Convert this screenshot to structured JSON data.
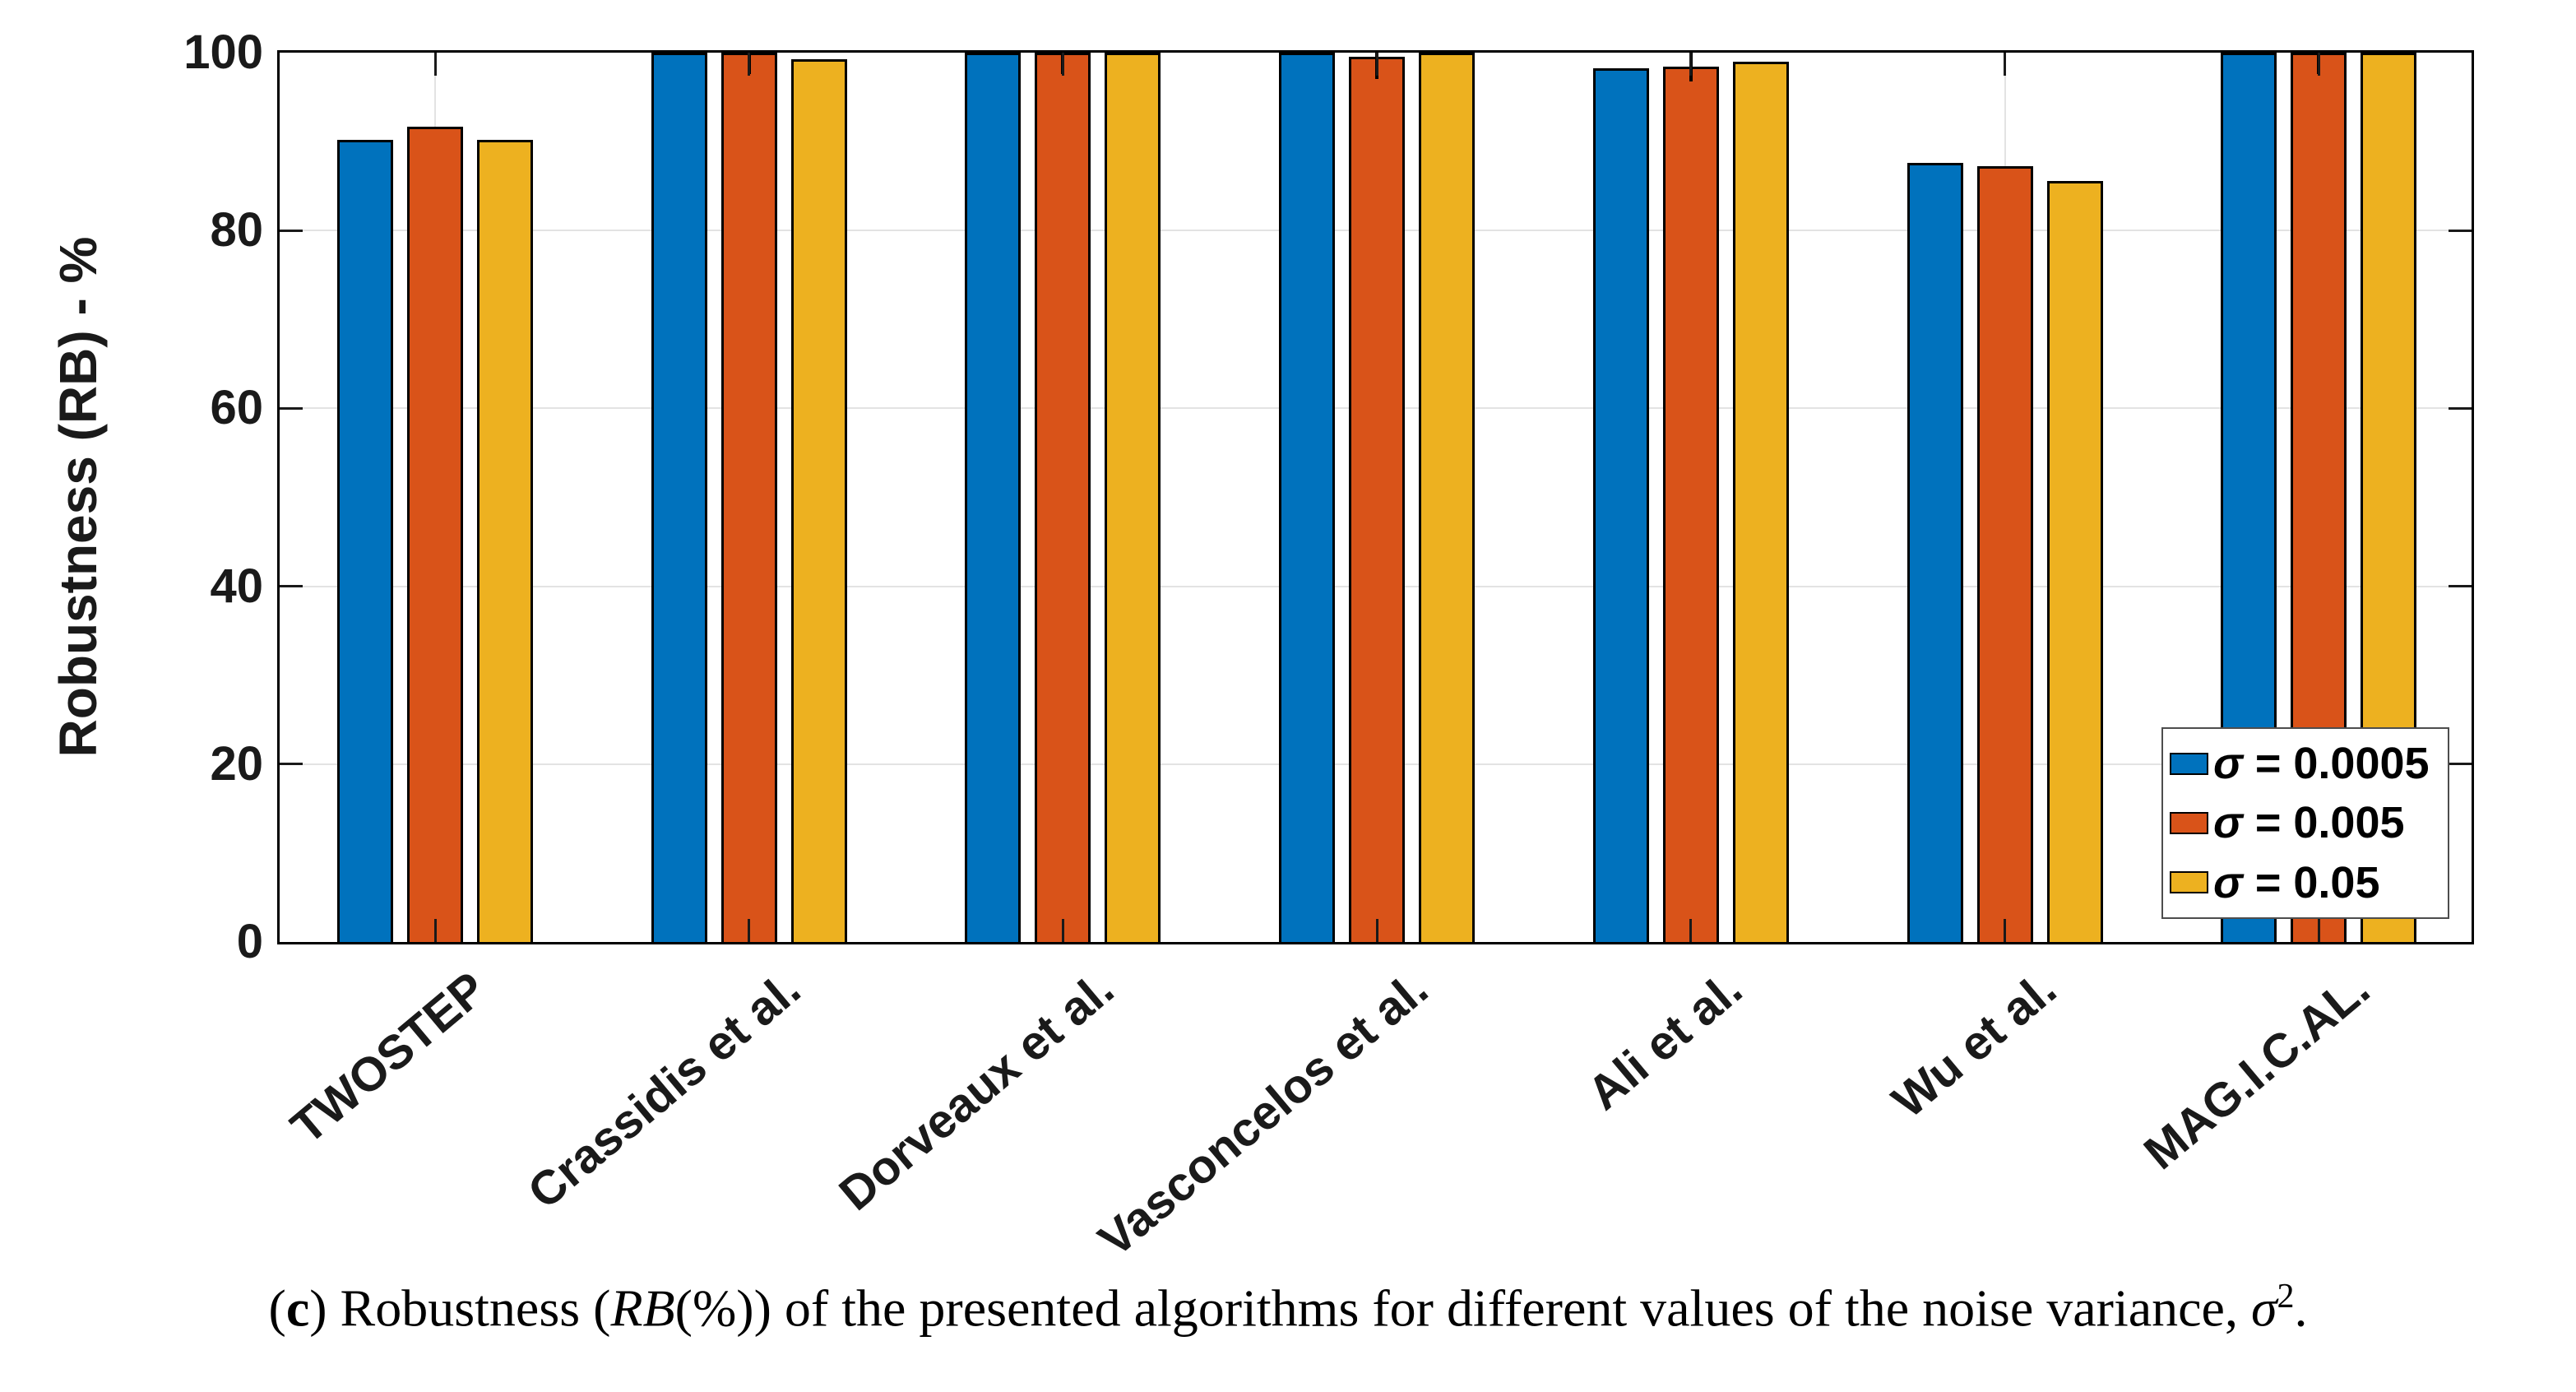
{
  "chart_data": {
    "type": "bar",
    "title": "",
    "ylabel": "Robustness (RB) - %",
    "xlabel": "",
    "ylim": [
      0,
      100
    ],
    "yticks": [
      0,
      20,
      40,
      60,
      80,
      100
    ],
    "grid": true,
    "legend_position": "lower right",
    "categories": [
      "TWOSTEP",
      "Crassidis et al.",
      "Dorveaux et al.",
      "Vasconcelos et al.",
      "Ali et al.",
      "Wu et al.",
      "MAG.I.C.AL."
    ],
    "series": [
      {
        "name": "σ = 0.0005",
        "symbol": "σ",
        "label_rest": " = 0.0005",
        "color": "#0072BD",
        "values": [
          90.2,
          100,
          100,
          100,
          98.2,
          87.6,
          100
        ],
        "errors": [
          null,
          null,
          null,
          null,
          null,
          null,
          null
        ]
      },
      {
        "name": "σ = 0.005",
        "symbol": "σ",
        "label_rest": " = 0.005",
        "color": "#D95319",
        "values": [
          91.7,
          100,
          100,
          99.5,
          98.4,
          87.2,
          100
        ],
        "errors": [
          null,
          2.4,
          2.4,
          2.5,
          1.6,
          null,
          2.4
        ]
      },
      {
        "name": "σ = 0.05",
        "symbol": "σ",
        "label_rest": " = 0.05",
        "color": "#EDB120",
        "values": [
          90.2,
          99.3,
          100,
          100,
          99.0,
          85.6,
          100
        ],
        "errors": [
          null,
          null,
          null,
          null,
          null,
          null,
          null
        ]
      }
    ],
    "axis_color": "#000000",
    "grid_color": "#e3e3e3",
    "text_color": "#1a1a1a",
    "error_bar_color": "#000000"
  },
  "caption": {
    "full": "(c) Robustness (RB(%)) of the presented algorithms for different values of the noise variance, σ2.",
    "open_paren": "(",
    "c": "c",
    "after_c": ") Robustness (",
    "rb": "RB",
    "middle": "(%)) of the presented algorithms for different values of the noise variance, ",
    "sigma": "σ",
    "exponent": "2",
    "period": "."
  }
}
